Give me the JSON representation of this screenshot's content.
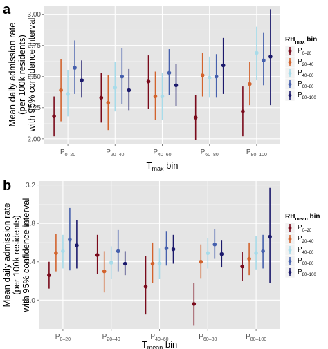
{
  "chart_data": [
    {
      "panel_label": "a",
      "type": "errorbar",
      "xlabel": "T",
      "xlabel_sub": "max",
      "xlabel_suffix": " bin",
      "ylabel_lines": [
        "Mean daily admission rate",
        "(per 100k residents)",
        "with 95% confidence interval"
      ],
      "categories": [
        {
          "main": "P",
          "sub": "0–20"
        },
        {
          "main": "P",
          "sub": "20–40"
        },
        {
          "main": "P",
          "sub": "40–60"
        },
        {
          "main": "P",
          "sub": "60–80"
        },
        {
          "main": "P",
          "sub": "80–100"
        }
      ],
      "ylim": [
        1.96,
        3.07
      ],
      "yticks": [
        2.0,
        2.25,
        2.5,
        2.75,
        3.0
      ],
      "ytick_labels": [
        "2.00",
        "2.25",
        "2.50",
        "2.75",
        "3.00"
      ],
      "grid": true,
      "legend": {
        "title_main": "RH",
        "title_sub": "max",
        "title_suffix": " bin",
        "placement": "right"
      },
      "series": [
        {
          "label_main": "P",
          "label_sub": "0–20",
          "color": "#7a0a1b",
          "values": [
            2.18,
            2.33,
            2.46,
            2.17,
            2.22
          ],
          "lower": [
            2.02,
            2.13,
            2.24,
            1.99,
            2.02
          ],
          "upper": [
            2.34,
            2.53,
            2.67,
            2.35,
            2.42
          ]
        },
        {
          "label_main": "P",
          "label_sub": "20–40",
          "color": "#d2632d",
          "values": [
            2.39,
            2.29,
            2.34,
            2.51,
            2.44
          ],
          "lower": [
            2.14,
            2.07,
            2.15,
            2.34,
            2.27
          ],
          "upper": [
            2.64,
            2.51,
            2.54,
            2.69,
            2.62
          ]
        },
        {
          "label_main": "P",
          "label_sub": "40–60",
          "color": "#a8dcea",
          "values": [
            2.36,
            2.41,
            2.34,
            2.49,
            2.69
          ],
          "lower": [
            2.18,
            2.22,
            2.15,
            2.33,
            2.47
          ],
          "upper": [
            2.55,
            2.62,
            2.53,
            2.66,
            2.9
          ]
        },
        {
          "label_main": "P",
          "label_sub": "60–80",
          "color": "#4660ad",
          "values": [
            2.57,
            2.5,
            2.53,
            2.5,
            2.63
          ],
          "lower": [
            2.36,
            2.28,
            2.35,
            2.33,
            2.43
          ],
          "upper": [
            2.79,
            2.73,
            2.72,
            2.68,
            2.85
          ]
        },
        {
          "label_main": "P",
          "label_sub": "80–100",
          "color": "#1c1a6c",
          "values": [
            2.47,
            2.39,
            2.43,
            2.59,
            2.66
          ],
          "lower": [
            2.33,
            2.23,
            2.26,
            2.36,
            2.27
          ],
          "upper": [
            2.63,
            2.56,
            2.6,
            2.81,
            3.04
          ]
        }
      ]
    },
    {
      "panel_label": "b",
      "type": "errorbar",
      "xlabel": "T",
      "xlabel_sub": "mean",
      "xlabel_suffix": " bin",
      "ylabel_lines": [
        "Mean daily admission rate",
        "(per 100k residents)",
        "with 95% confidence interval"
      ],
      "categories": [
        {
          "main": "P",
          "sub": "0–20"
        },
        {
          "main": "P",
          "sub": "20–40"
        },
        {
          "main": "P",
          "sub": "40–60"
        },
        {
          "main": "P",
          "sub": "60–80"
        },
        {
          "main": "P",
          "sub": "80–100"
        }
      ],
      "ylim": [
        1.7,
        3.24
      ],
      "yticks": [
        2.0,
        2.4,
        2.8,
        3.2
      ],
      "ytick_labels": [
        "2.0",
        "2.4",
        "2.8",
        "3.2"
      ],
      "grid": true,
      "legend": {
        "title_main": "RH",
        "title_sub": "mean",
        "title_suffix": " bin",
        "placement": "right"
      },
      "series": [
        {
          "label_main": "P",
          "label_sub": "0–20",
          "color": "#7a0a1b",
          "values": [
            2.26,
            2.47,
            2.14,
            1.96,
            2.35
          ],
          "lower": [
            2.12,
            2.27,
            1.85,
            1.74,
            2.2
          ],
          "upper": [
            2.4,
            2.68,
            2.46,
            2.18,
            2.5
          ]
        },
        {
          "label_main": "P",
          "label_sub": "20–40",
          "color": "#d2632d",
          "values": [
            2.49,
            2.3,
            2.38,
            2.4,
            2.43
          ],
          "lower": [
            2.3,
            2.08,
            2.18,
            2.23,
            2.26
          ],
          "upper": [
            2.69,
            2.51,
            2.6,
            2.58,
            2.6
          ]
        },
        {
          "label_main": "P",
          "label_sub": "40–60",
          "color": "#a8dcea",
          "values": [
            2.51,
            2.39,
            2.38,
            2.49,
            2.49
          ],
          "lower": [
            2.33,
            2.22,
            2.22,
            2.33,
            2.32
          ],
          "upper": [
            2.68,
            2.56,
            2.54,
            2.65,
            2.67
          ]
        },
        {
          "label_main": "P",
          "label_sub": "60–80",
          "color": "#4660ad",
          "values": [
            2.63,
            2.51,
            2.54,
            2.58,
            2.51
          ],
          "lower": [
            2.31,
            2.3,
            2.36,
            2.43,
            2.33
          ],
          "upper": [
            2.96,
            2.73,
            2.72,
            2.74,
            2.68
          ]
        },
        {
          "label_main": "P",
          "label_sub": "80–100",
          "color": "#1c1a6c",
          "values": [
            2.57,
            2.38,
            2.53,
            2.48,
            2.66
          ],
          "lower": [
            2.33,
            2.26,
            2.38,
            2.34,
            2.18
          ],
          "upper": [
            2.83,
            2.51,
            2.68,
            2.62,
            3.17
          ]
        }
      ]
    }
  ]
}
